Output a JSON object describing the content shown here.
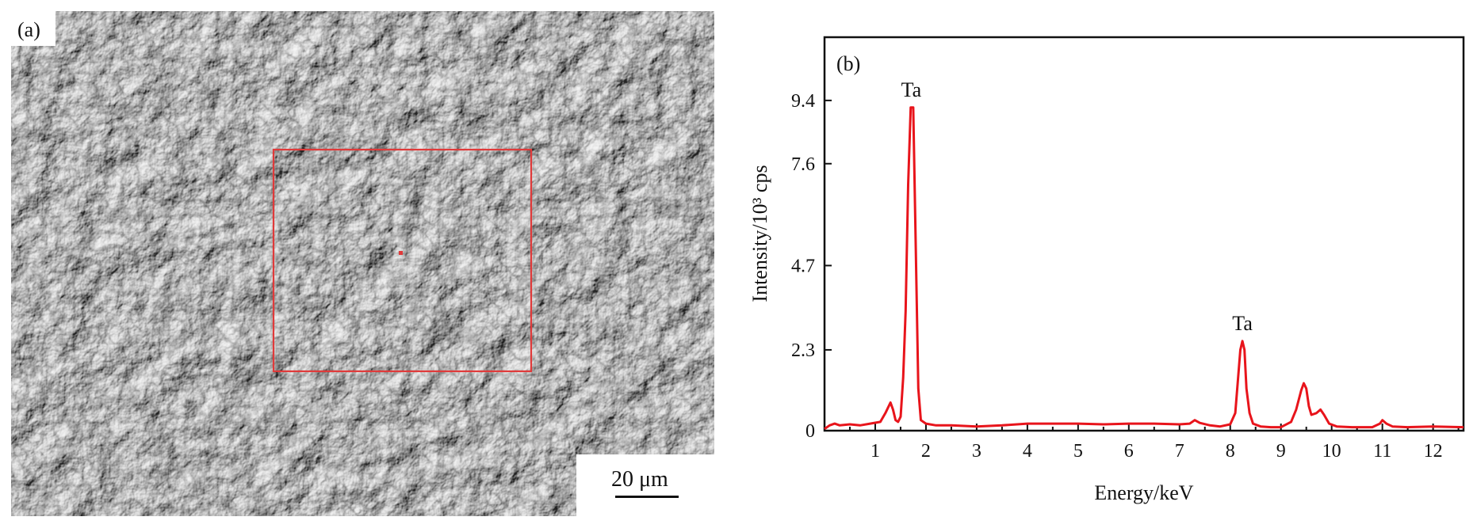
{
  "figure": {
    "panel_a": {
      "label": "(a)",
      "scale_bar_text": "20 μm",
      "roi_color": "#e03a3a"
    },
    "panel_b": {
      "label": "(b)",
      "line_color": "#e8141b"
    }
  },
  "chart_data": {
    "type": "line",
    "xlabel": "Energy/keV",
    "ylabel": "Intensity/10³ cps",
    "xlim": [
      0,
      12.6
    ],
    "ylim": [
      0,
      11.2
    ],
    "x_ticks": [
      1,
      2,
      3,
      4,
      5,
      6,
      7,
      8,
      9,
      10,
      11,
      12
    ],
    "y_ticks": [
      0,
      2.3,
      4.7,
      7.6,
      9.4
    ],
    "y_tick_labels": [
      "0",
      "2.3",
      "4.7",
      "7.6",
      "9.4"
    ],
    "annotations": [
      {
        "text": "Ta",
        "x": 1.71,
        "y": 9.2
      },
      {
        "text": "Ta",
        "x": 8.24,
        "y": 2.55
      }
    ],
    "series": [
      {
        "x": [
          0.0,
          0.1,
          0.2,
          0.3,
          0.5,
          0.7,
          0.9,
          1.1,
          1.2,
          1.3,
          1.35,
          1.4,
          1.45,
          1.5,
          1.55,
          1.6,
          1.65,
          1.7,
          1.75,
          1.8,
          1.85,
          1.9,
          2.0,
          2.2,
          2.5,
          3.0,
          3.5,
          4.0,
          4.5,
          5.0,
          5.5,
          6.0,
          6.5,
          7.0,
          7.2,
          7.3,
          7.4,
          7.6,
          7.8,
          8.0,
          8.1,
          8.15,
          8.2,
          8.24,
          8.28,
          8.32,
          8.38,
          8.45,
          8.6,
          8.8,
          9.0,
          9.2,
          9.3,
          9.4,
          9.45,
          9.5,
          9.55,
          9.6,
          9.7,
          9.78,
          9.85,
          9.95,
          10.1,
          10.4,
          10.8,
          10.95,
          11.0,
          11.08,
          11.2,
          11.5,
          12.0,
          12.6
        ],
        "y": [
          0.05,
          0.15,
          0.2,
          0.15,
          0.18,
          0.15,
          0.2,
          0.25,
          0.5,
          0.8,
          0.6,
          0.3,
          0.25,
          0.4,
          1.5,
          3.4,
          7.0,
          9.2,
          9.2,
          5.2,
          1.2,
          0.3,
          0.2,
          0.15,
          0.15,
          0.12,
          0.15,
          0.2,
          0.2,
          0.2,
          0.18,
          0.2,
          0.2,
          0.18,
          0.2,
          0.3,
          0.22,
          0.15,
          0.12,
          0.18,
          0.5,
          1.4,
          2.3,
          2.55,
          2.3,
          1.2,
          0.5,
          0.2,
          0.12,
          0.1,
          0.1,
          0.25,
          0.6,
          1.15,
          1.35,
          1.2,
          0.7,
          0.45,
          0.5,
          0.6,
          0.45,
          0.2,
          0.12,
          0.1,
          0.1,
          0.2,
          0.3,
          0.2,
          0.12,
          0.1,
          0.12,
          0.1
        ]
      }
    ]
  }
}
